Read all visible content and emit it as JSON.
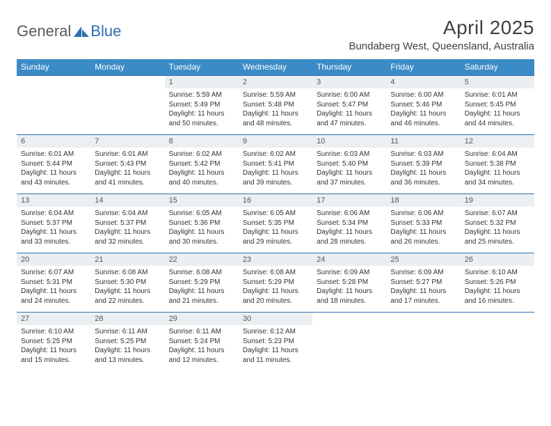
{
  "logo": {
    "part1": "General",
    "part2": "Blue"
  },
  "title": "April 2025",
  "location": "Bundaberg West, Queensland, Australia",
  "colors": {
    "header_bg": "#3b8bc6",
    "rule": "#2f6fb0",
    "daynum_bg": "#eceff1"
  },
  "day_labels": [
    "Sunday",
    "Monday",
    "Tuesday",
    "Wednesday",
    "Thursday",
    "Friday",
    "Saturday"
  ],
  "weeks": [
    [
      {
        "n": "",
        "empty": true
      },
      {
        "n": "",
        "empty": true
      },
      {
        "n": "1",
        "sr": "Sunrise: 5:59 AM",
        "ss": "Sunset: 5:49 PM",
        "dl": "Daylight: 11 hours and 50 minutes."
      },
      {
        "n": "2",
        "sr": "Sunrise: 5:59 AM",
        "ss": "Sunset: 5:48 PM",
        "dl": "Daylight: 11 hours and 48 minutes."
      },
      {
        "n": "3",
        "sr": "Sunrise: 6:00 AM",
        "ss": "Sunset: 5:47 PM",
        "dl": "Daylight: 11 hours and 47 minutes."
      },
      {
        "n": "4",
        "sr": "Sunrise: 6:00 AM",
        "ss": "Sunset: 5:46 PM",
        "dl": "Daylight: 11 hours and 46 minutes."
      },
      {
        "n": "5",
        "sr": "Sunrise: 6:01 AM",
        "ss": "Sunset: 5:45 PM",
        "dl": "Daylight: 11 hours and 44 minutes."
      }
    ],
    [
      {
        "n": "6",
        "sr": "Sunrise: 6:01 AM",
        "ss": "Sunset: 5:44 PM",
        "dl": "Daylight: 11 hours and 43 minutes."
      },
      {
        "n": "7",
        "sr": "Sunrise: 6:01 AM",
        "ss": "Sunset: 5:43 PM",
        "dl": "Daylight: 11 hours and 41 minutes."
      },
      {
        "n": "8",
        "sr": "Sunrise: 6:02 AM",
        "ss": "Sunset: 5:42 PM",
        "dl": "Daylight: 11 hours and 40 minutes."
      },
      {
        "n": "9",
        "sr": "Sunrise: 6:02 AM",
        "ss": "Sunset: 5:41 PM",
        "dl": "Daylight: 11 hours and 39 minutes."
      },
      {
        "n": "10",
        "sr": "Sunrise: 6:03 AM",
        "ss": "Sunset: 5:40 PM",
        "dl": "Daylight: 11 hours and 37 minutes."
      },
      {
        "n": "11",
        "sr": "Sunrise: 6:03 AM",
        "ss": "Sunset: 5:39 PM",
        "dl": "Daylight: 11 hours and 36 minutes."
      },
      {
        "n": "12",
        "sr": "Sunrise: 6:04 AM",
        "ss": "Sunset: 5:38 PM",
        "dl": "Daylight: 11 hours and 34 minutes."
      }
    ],
    [
      {
        "n": "13",
        "sr": "Sunrise: 6:04 AM",
        "ss": "Sunset: 5:37 PM",
        "dl": "Daylight: 11 hours and 33 minutes."
      },
      {
        "n": "14",
        "sr": "Sunrise: 6:04 AM",
        "ss": "Sunset: 5:37 PM",
        "dl": "Daylight: 11 hours and 32 minutes."
      },
      {
        "n": "15",
        "sr": "Sunrise: 6:05 AM",
        "ss": "Sunset: 5:36 PM",
        "dl": "Daylight: 11 hours and 30 minutes."
      },
      {
        "n": "16",
        "sr": "Sunrise: 6:05 AM",
        "ss": "Sunset: 5:35 PM",
        "dl": "Daylight: 11 hours and 29 minutes."
      },
      {
        "n": "17",
        "sr": "Sunrise: 6:06 AM",
        "ss": "Sunset: 5:34 PM",
        "dl": "Daylight: 11 hours and 28 minutes."
      },
      {
        "n": "18",
        "sr": "Sunrise: 6:06 AM",
        "ss": "Sunset: 5:33 PM",
        "dl": "Daylight: 11 hours and 26 minutes."
      },
      {
        "n": "19",
        "sr": "Sunrise: 6:07 AM",
        "ss": "Sunset: 5:32 PM",
        "dl": "Daylight: 11 hours and 25 minutes."
      }
    ],
    [
      {
        "n": "20",
        "sr": "Sunrise: 6:07 AM",
        "ss": "Sunset: 5:31 PM",
        "dl": "Daylight: 11 hours and 24 minutes."
      },
      {
        "n": "21",
        "sr": "Sunrise: 6:08 AM",
        "ss": "Sunset: 5:30 PM",
        "dl": "Daylight: 11 hours and 22 minutes."
      },
      {
        "n": "22",
        "sr": "Sunrise: 6:08 AM",
        "ss": "Sunset: 5:29 PM",
        "dl": "Daylight: 11 hours and 21 minutes."
      },
      {
        "n": "23",
        "sr": "Sunrise: 6:08 AM",
        "ss": "Sunset: 5:29 PM",
        "dl": "Daylight: 11 hours and 20 minutes."
      },
      {
        "n": "24",
        "sr": "Sunrise: 6:09 AM",
        "ss": "Sunset: 5:28 PM",
        "dl": "Daylight: 11 hours and 18 minutes."
      },
      {
        "n": "25",
        "sr": "Sunrise: 6:09 AM",
        "ss": "Sunset: 5:27 PM",
        "dl": "Daylight: 11 hours and 17 minutes."
      },
      {
        "n": "26",
        "sr": "Sunrise: 6:10 AM",
        "ss": "Sunset: 5:26 PM",
        "dl": "Daylight: 11 hours and 16 minutes."
      }
    ],
    [
      {
        "n": "27",
        "sr": "Sunrise: 6:10 AM",
        "ss": "Sunset: 5:25 PM",
        "dl": "Daylight: 11 hours and 15 minutes."
      },
      {
        "n": "28",
        "sr": "Sunrise: 6:11 AM",
        "ss": "Sunset: 5:25 PM",
        "dl": "Daylight: 11 hours and 13 minutes."
      },
      {
        "n": "29",
        "sr": "Sunrise: 6:11 AM",
        "ss": "Sunset: 5:24 PM",
        "dl": "Daylight: 11 hours and 12 minutes."
      },
      {
        "n": "30",
        "sr": "Sunrise: 6:12 AM",
        "ss": "Sunset: 5:23 PM",
        "dl": "Daylight: 11 hours and 11 minutes."
      },
      {
        "n": "",
        "empty": true
      },
      {
        "n": "",
        "empty": true
      },
      {
        "n": "",
        "empty": true
      }
    ]
  ]
}
